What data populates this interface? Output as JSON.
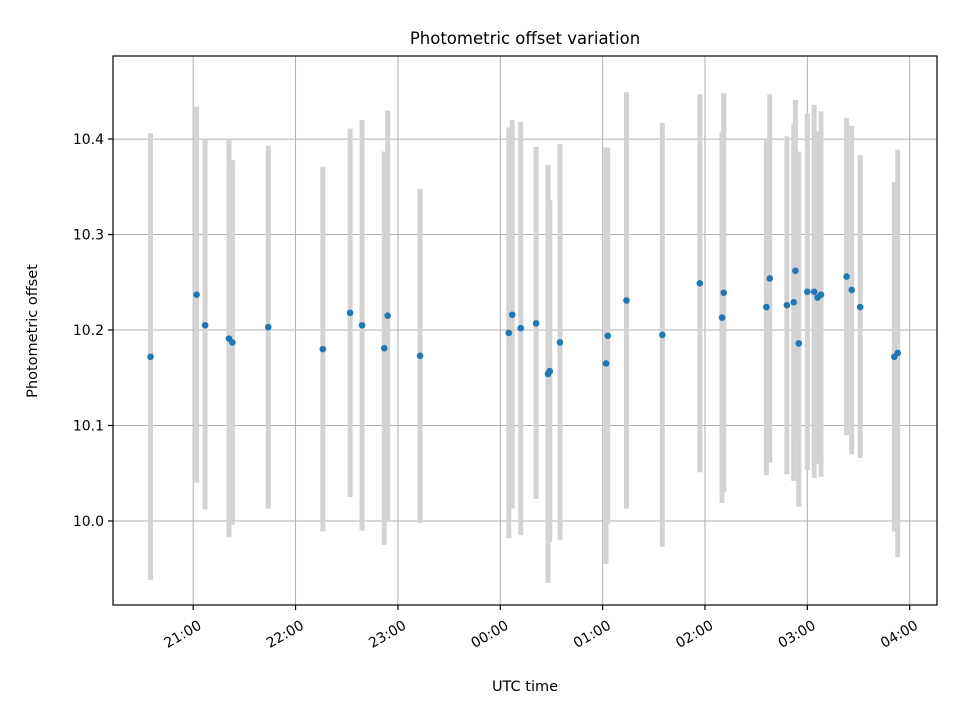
{
  "chart_data": {
    "type": "scatter",
    "title": "Photometric offset variation",
    "xlabel": "UTC time",
    "ylabel": "Photometric offset",
    "x_tick_labels": [
      "21:00",
      "22:00",
      "23:00",
      "00:00",
      "01:00",
      "02:00",
      "03:00",
      "04:00"
    ],
    "y_tick_labels": [
      "10.0",
      "10.1",
      "10.2",
      "10.3",
      "10.4"
    ],
    "y_ticks": [
      10.0,
      10.1,
      10.2,
      10.3,
      10.4
    ],
    "xlim": [
      "20:13",
      "04:16"
    ],
    "ylim": [
      9.912,
      10.487
    ],
    "grid": true,
    "colors": {
      "points": "#1f77b4",
      "errorbars": "#d3d3d3",
      "grid": "#b0b0b0"
    },
    "points": [
      {
        "t": "20:35",
        "y": 10.172,
        "lo": 9.938,
        "hi": 10.406
      },
      {
        "t": "21:02",
        "y": 10.237,
        "lo": 10.04,
        "hi": 10.434
      },
      {
        "t": "21:07",
        "y": 10.205,
        "lo": 10.012,
        "hi": 10.4
      },
      {
        "t": "21:21",
        "y": 10.191,
        "lo": 9.983,
        "hi": 10.399
      },
      {
        "t": "21:23",
        "y": 10.187,
        "lo": 9.996,
        "hi": 10.378
      },
      {
        "t": "21:44",
        "y": 10.203,
        "lo": 10.013,
        "hi": 10.393
      },
      {
        "t": "22:16",
        "y": 10.18,
        "lo": 9.989,
        "hi": 10.371
      },
      {
        "t": "22:32",
        "y": 10.218,
        "lo": 10.025,
        "hi": 10.411
      },
      {
        "t": "22:39",
        "y": 10.205,
        "lo": 9.99,
        "hi": 10.42
      },
      {
        "t": "22:52",
        "y": 10.181,
        "lo": 9.975,
        "hi": 10.387
      },
      {
        "t": "22:54",
        "y": 10.215,
        "lo": 10.0,
        "hi": 10.43
      },
      {
        "t": "23:13",
        "y": 10.173,
        "lo": 9.998,
        "hi": 10.348
      },
      {
        "t": "00:05",
        "y": 10.197,
        "lo": 9.982,
        "hi": 10.412
      },
      {
        "t": "00:07",
        "y": 10.216,
        "lo": 10.013,
        "hi": 10.42
      },
      {
        "t": "00:12",
        "y": 10.202,
        "lo": 9.985,
        "hi": 10.418
      },
      {
        "t": "00:21",
        "y": 10.207,
        "lo": 10.023,
        "hi": 10.392
      },
      {
        "t": "00:28",
        "y": 10.154,
        "lo": 9.935,
        "hi": 10.373
      },
      {
        "t": "00:29",
        "y": 10.157,
        "lo": 9.978,
        "hi": 10.336
      },
      {
        "t": "00:35",
        "y": 10.187,
        "lo": 9.98,
        "hi": 10.395
      },
      {
        "t": "01:02",
        "y": 10.165,
        "lo": 9.955,
        "hi": 10.391
      },
      {
        "t": "01:03",
        "y": 10.194,
        "lo": 9.997,
        "hi": 10.391
      },
      {
        "t": "01:14",
        "y": 10.231,
        "lo": 10.013,
        "hi": 10.449
      },
      {
        "t": "01:35",
        "y": 10.195,
        "lo": 9.973,
        "hi": 10.417
      },
      {
        "t": "01:57",
        "y": 10.249,
        "lo": 10.051,
        "hi": 10.447
      },
      {
        "t": "02:10",
        "y": 10.213,
        "lo": 10.019,
        "hi": 10.407
      },
      {
        "t": "02:11",
        "y": 10.239,
        "lo": 10.03,
        "hi": 10.448
      },
      {
        "t": "02:36",
        "y": 10.224,
        "lo": 10.048,
        "hi": 10.4
      },
      {
        "t": "02:38",
        "y": 10.254,
        "lo": 10.061,
        "hi": 10.447
      },
      {
        "t": "02:48",
        "y": 10.226,
        "lo": 10.049,
        "hi": 10.403
      },
      {
        "t": "02:52",
        "y": 10.229,
        "lo": 10.042,
        "hi": 10.416
      },
      {
        "t": "02:53",
        "y": 10.262,
        "lo": 10.082,
        "hi": 10.441
      },
      {
        "t": "02:55",
        "y": 10.186,
        "lo": 10.015,
        "hi": 10.387
      },
      {
        "t": "03:00",
        "y": 10.24,
        "lo": 10.053,
        "hi": 10.427
      },
      {
        "t": "03:04",
        "y": 10.24,
        "lo": 10.045,
        "hi": 10.436
      },
      {
        "t": "03:06",
        "y": 10.234,
        "lo": 10.06,
        "hi": 10.408
      },
      {
        "t": "03:08",
        "y": 10.237,
        "lo": 10.046,
        "hi": 10.429
      },
      {
        "t": "03:23",
        "y": 10.256,
        "lo": 10.09,
        "hi": 10.422
      },
      {
        "t": "03:26",
        "y": 10.242,
        "lo": 10.07,
        "hi": 10.414
      },
      {
        "t": "03:31",
        "y": 10.224,
        "lo": 10.066,
        "hi": 10.383
      },
      {
        "t": "03:51",
        "y": 10.172,
        "lo": 9.989,
        "hi": 10.355
      },
      {
        "t": "03:53",
        "y": 10.176,
        "lo": 9.962,
        "hi": 10.389
      }
    ]
  }
}
